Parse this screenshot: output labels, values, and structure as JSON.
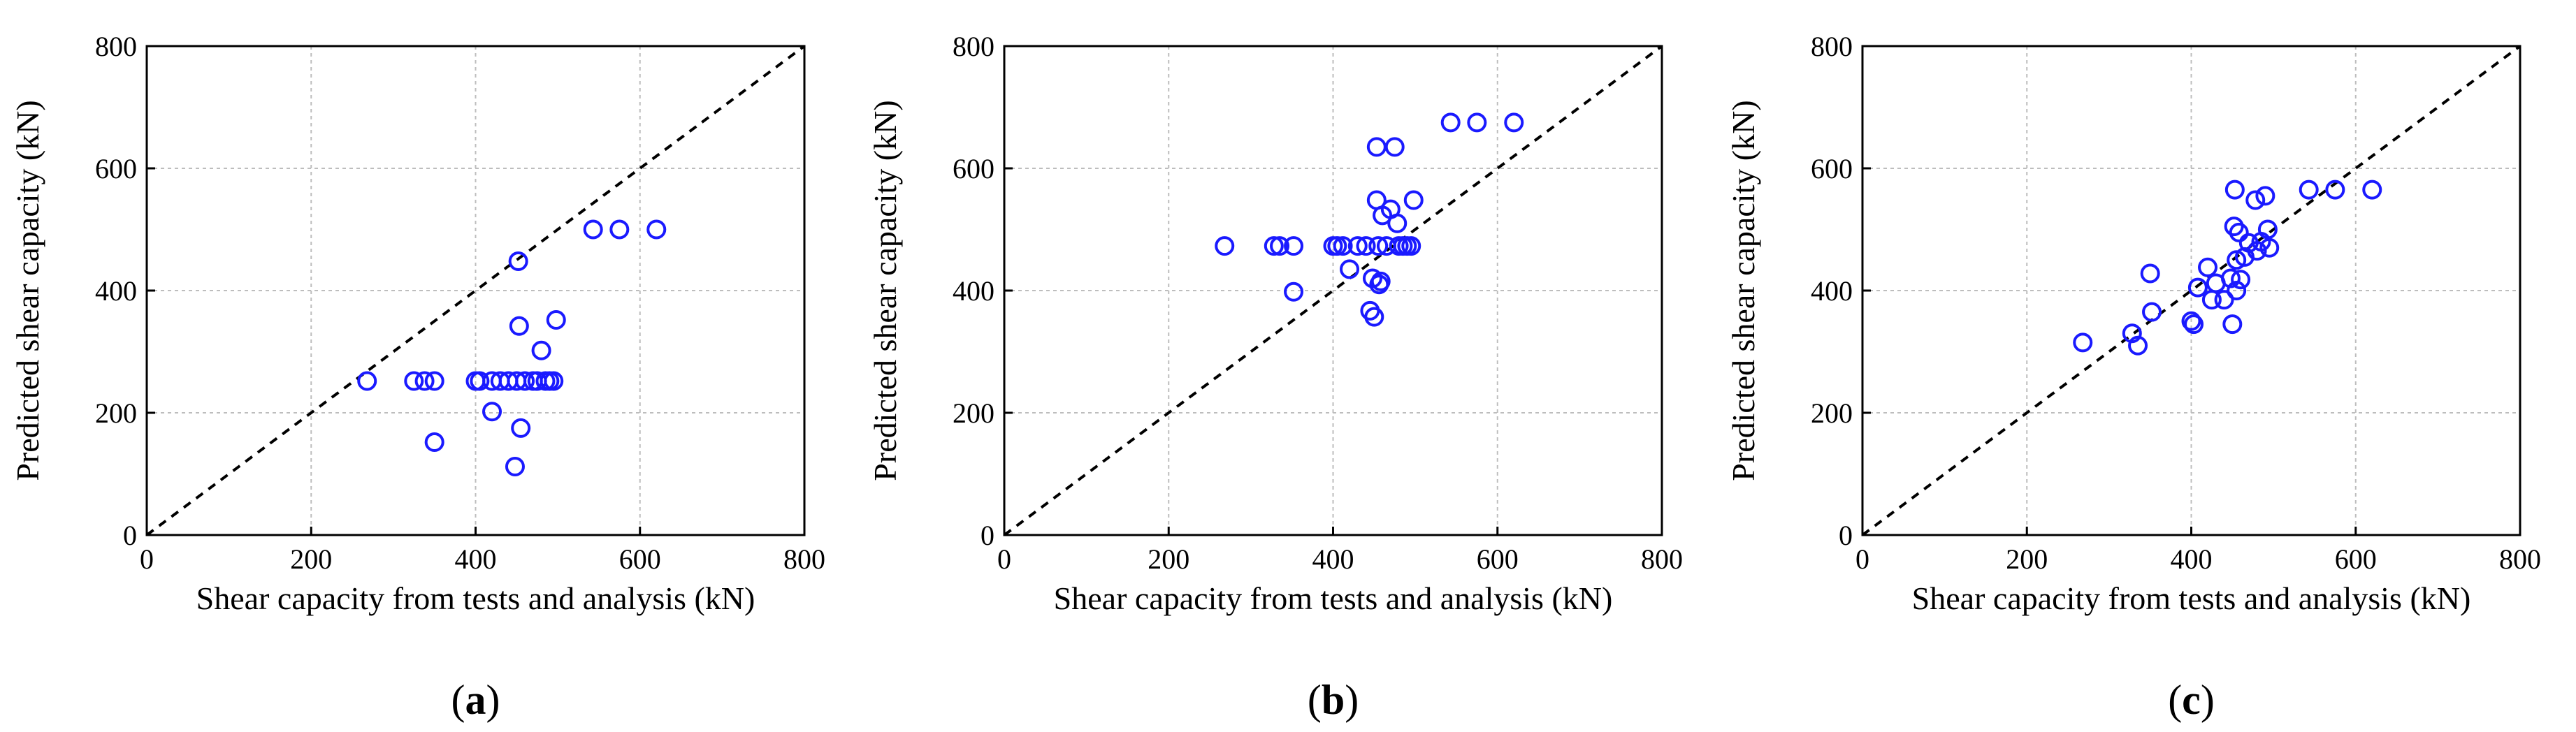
{
  "figure": {
    "panels": [
      "a",
      "b",
      "c"
    ]
  },
  "colors": {
    "marker": "#1a1aff",
    "grid": "#bdbdbd",
    "axis": "#000000",
    "identity_line": "#000000"
  },
  "chart_data": [
    {
      "type": "scatter",
      "panel_label": "a",
      "title": "",
      "xlabel": "Shear capacity from tests and analysis (kN)",
      "ylabel": "Predicted shear capacity (kN)",
      "xlim": [
        0,
        800
      ],
      "ylim": [
        0,
        800
      ],
      "xticks": [
        0,
        200,
        400,
        600,
        800
      ],
      "yticks": [
        0,
        200,
        400,
        600,
        800
      ],
      "grid": true,
      "reference_line": "y = x (dashed)",
      "marker": "open circle",
      "points": [
        [
          268,
          252
        ],
        [
          325,
          252
        ],
        [
          338,
          252
        ],
        [
          350,
          252
        ],
        [
          350,
          152
        ],
        [
          400,
          252
        ],
        [
          405,
          252
        ],
        [
          420,
          252
        ],
        [
          420,
          202
        ],
        [
          430,
          252
        ],
        [
          440,
          252
        ],
        [
          450,
          252
        ],
        [
          452,
          448
        ],
        [
          453,
          342
        ],
        [
          448,
          112
        ],
        [
          455,
          175
        ],
        [
          460,
          252
        ],
        [
          470,
          252
        ],
        [
          475,
          252
        ],
        [
          480,
          302
        ],
        [
          485,
          252
        ],
        [
          490,
          252
        ],
        [
          495,
          252
        ],
        [
          498,
          352
        ],
        [
          543,
          500
        ],
        [
          575,
          500
        ],
        [
          620,
          500
        ]
      ]
    },
    {
      "type": "scatter",
      "panel_label": "b",
      "title": "",
      "xlabel": "Shear capacity from tests and analysis (kN)",
      "ylabel": "Predicted shear capacity (kN)",
      "xlim": [
        0,
        800
      ],
      "ylim": [
        0,
        800
      ],
      "xticks": [
        0,
        200,
        400,
        600,
        800
      ],
      "yticks": [
        0,
        200,
        400,
        600,
        800
      ],
      "grid": true,
      "reference_line": "y = x (dashed)",
      "marker": "open circle",
      "points": [
        [
          268,
          473
        ],
        [
          328,
          473
        ],
        [
          335,
          473
        ],
        [
          352,
          473
        ],
        [
          352,
          398
        ],
        [
          400,
          473
        ],
        [
          405,
          473
        ],
        [
          412,
          473
        ],
        [
          420,
          435
        ],
        [
          430,
          473
        ],
        [
          440,
          473
        ],
        [
          445,
          367
        ],
        [
          448,
          420
        ],
        [
          450,
          357
        ],
        [
          453,
          635
        ],
        [
          453,
          548
        ],
        [
          455,
          473
        ],
        [
          456,
          410
        ],
        [
          458,
          415
        ],
        [
          460,
          523
        ],
        [
          465,
          473
        ],
        [
          470,
          533
        ],
        [
          475,
          635
        ],
        [
          478,
          510
        ],
        [
          480,
          473
        ],
        [
          485,
          473
        ],
        [
          490,
          473
        ],
        [
          495,
          473
        ],
        [
          498,
          548
        ],
        [
          543,
          675
        ],
        [
          575,
          675
        ],
        [
          620,
          675
        ]
      ]
    },
    {
      "type": "scatter",
      "panel_label": "c",
      "title": "",
      "xlabel": "Shear capacity from tests and analysis (kN)",
      "ylabel": "Predicted shear capacity (kN)",
      "xlim": [
        0,
        800
      ],
      "ylim": [
        0,
        800
      ],
      "xticks": [
        0,
        200,
        400,
        600,
        800
      ],
      "yticks": [
        0,
        200,
        400,
        600,
        800
      ],
      "grid": true,
      "reference_line": "y = x (dashed)",
      "marker": "open circle",
      "points": [
        [
          268,
          315
        ],
        [
          328,
          330
        ],
        [
          335,
          310
        ],
        [
          350,
          428
        ],
        [
          352,
          365
        ],
        [
          400,
          350
        ],
        [
          403,
          345
        ],
        [
          408,
          405
        ],
        [
          420,
          438
        ],
        [
          425,
          385
        ],
        [
          430,
          412
        ],
        [
          440,
          385
        ],
        [
          448,
          420
        ],
        [
          450,
          345
        ],
        [
          452,
          505
        ],
        [
          453,
          565
        ],
        [
          455,
          400
        ],
        [
          455,
          450
        ],
        [
          458,
          495
        ],
        [
          460,
          418
        ],
        [
          465,
          455
        ],
        [
          470,
          478
        ],
        [
          478,
          548
        ],
        [
          480,
          465
        ],
        [
          485,
          480
        ],
        [
          490,
          555
        ],
        [
          493,
          500
        ],
        [
          495,
          470
        ],
        [
          543,
          565
        ],
        [
          575,
          565
        ],
        [
          620,
          565
        ]
      ]
    }
  ]
}
